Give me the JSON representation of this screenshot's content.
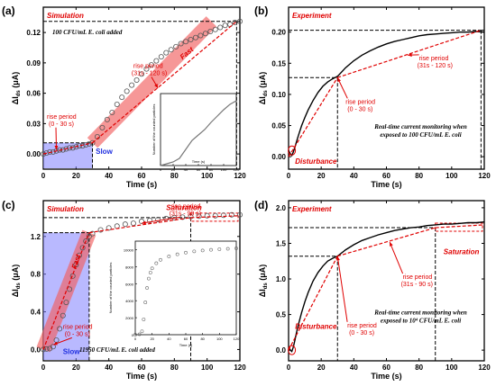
{
  "chart_data": [
    {
      "panel": "(a)",
      "type": "scatter",
      "mode_label": "Simulation",
      "annotation": "100  CFU/mL E. coli added",
      "xlabel": "Time (s)",
      "ylabel": "ΔI",
      "ylabel_sub": "ds",
      "ylabel_unit": " (μA)",
      "xlim": [
        0,
        120
      ],
      "ylim": [
        -0.015,
        0.145
      ],
      "xticks": [
        0,
        20,
        40,
        60,
        80,
        100,
        120
      ],
      "yticks": [
        0.0,
        0.03,
        0.06,
        0.09,
        0.12
      ],
      "ytick_labels": [
        "0.00",
        "0.03",
        "0.06",
        "0.09",
        "0.12"
      ],
      "periods": [
        {
          "label": "rise period",
          "range": "(0 - 30 s)"
        },
        {
          "label": "rise period",
          "range": "(31s - 120 s)"
        }
      ],
      "fast_label": "Fast",
      "slow_label": "Slow",
      "ref_lines": {
        "x": [
          30,
          118
        ],
        "y": [
          0.011,
          0.131
        ]
      },
      "series": [
        {
          "marker": "circle",
          "x": [
            0,
            2,
            4,
            6,
            8,
            10,
            12,
            14,
            16,
            18,
            20,
            22,
            24,
            26,
            28,
            30,
            33,
            36,
            39,
            42,
            45,
            48,
            51,
            54,
            57,
            60,
            63,
            66,
            69,
            72,
            75,
            78,
            81,
            84,
            87,
            90,
            93,
            96,
            99,
            102,
            105,
            108,
            111,
            114,
            117,
            120
          ],
          "y": [
            0.0,
            0.001,
            0.002,
            0.002,
            0.003,
            0.004,
            0.004,
            0.005,
            0.006,
            0.006,
            0.007,
            0.008,
            0.008,
            0.009,
            0.01,
            0.011,
            0.017,
            0.026,
            0.034,
            0.041,
            0.049,
            0.056,
            0.062,
            0.068,
            0.073,
            0.079,
            0.084,
            0.088,
            0.092,
            0.096,
            0.1,
            0.103,
            0.106,
            0.109,
            0.111,
            0.113,
            0.115,
            0.117,
            0.119,
            0.121,
            0.123,
            0.125,
            0.127,
            0.128,
            0.13,
            0.131
          ]
        }
      ],
      "fit_lines": [
        {
          "x": [
            0,
            30
          ],
          "y": [
            0.0,
            0.011
          ]
        },
        {
          "x": [
            30,
            118
          ],
          "y": [
            0.011,
            0.131
          ]
        }
      ],
      "inset": {
        "ylabel": "Number of the counted particles",
        "xlabel": "Time (s)",
        "xticks": [
          0,
          20,
          40,
          60,
          80,
          100,
          120
        ],
        "x": [
          0,
          10,
          20,
          30,
          40,
          50,
          60,
          70,
          80,
          90,
          100,
          110,
          120
        ],
        "y": [
          0,
          2,
          4,
          8,
          18,
          28,
          34,
          40,
          48,
          55,
          62,
          68,
          72
        ]
      }
    },
    {
      "panel": "(b)",
      "type": "line",
      "mode_label": "Experiment",
      "annotation_lines": [
        "Real-time current monitoring when",
        "exposed to 100 CFU/mL E. coli"
      ],
      "disturbance_label": "Disturbance",
      "xlabel": "Time (s)",
      "ylabel": "ΔI",
      "ylabel_sub": "ds",
      "ylabel_unit": " (μA)",
      "xlim": [
        0,
        120
      ],
      "ylim": [
        -0.02,
        0.24
      ],
      "xticks": [
        0,
        20,
        40,
        60,
        80,
        100,
        120
      ],
      "yticks": [
        0.0,
        0.05,
        0.1,
        0.15,
        0.2
      ],
      "ytick_labels": [
        "0.00",
        "0.05",
        "0.10",
        "0.15",
        "0.20"
      ],
      "periods": [
        {
          "label": "rise period",
          "range": "(0 - 30 s)"
        },
        {
          "label": "rise period",
          "range": "(31s - 120 s)"
        }
      ],
      "ref_lines": {
        "x": [
          30,
          118
        ],
        "y": [
          0.127,
          0.203
        ]
      },
      "series": [
        {
          "x": [
            0,
            1,
            2,
            3,
            4,
            5,
            6,
            8,
            10,
            12,
            15,
            18,
            21,
            24,
            27,
            30,
            35,
            40,
            45,
            50,
            55,
            60,
            65,
            70,
            75,
            80,
            85,
            90,
            95,
            100,
            105,
            110,
            115,
            120
          ],
          "y": [
            0.01,
            0.005,
            0.002,
            0.008,
            0.016,
            0.025,
            0.034,
            0.05,
            0.063,
            0.075,
            0.09,
            0.103,
            0.113,
            0.12,
            0.125,
            0.129,
            0.143,
            0.154,
            0.163,
            0.17,
            0.176,
            0.181,
            0.185,
            0.188,
            0.191,
            0.194,
            0.196,
            0.197,
            0.198,
            0.199,
            0.2,
            0.2,
            0.201,
            0.2
          ]
        }
      ],
      "fit_lines": [
        {
          "x": [
            0,
            30
          ],
          "y": [
            0.0,
            0.127
          ]
        },
        {
          "x": [
            30,
            118
          ],
          "y": [
            0.127,
            0.203
          ]
        }
      ]
    },
    {
      "panel": "(c)",
      "type": "scatter",
      "mode_label": "Simulation",
      "saturation_label": "Saturation",
      "annotation": "11950  CFU/mL E. coli added",
      "xlabel": "Time (s)",
      "ylabel": "ΔI",
      "ylabel_sub": "ds",
      "ylabel_unit": " (μA)",
      "xlim": [
        0,
        120
      ],
      "ylim": [
        -0.12,
        1.58
      ],
      "xticks": [
        0,
        20,
        40,
        60,
        80,
        100,
        120
      ],
      "yticks": [
        0.0,
        0.4,
        0.8,
        1.2
      ],
      "ytick_labels": [
        "0.0",
        "0.4",
        "0.8",
        "1.2"
      ],
      "periods": [
        {
          "label": "rise period",
          "range": "(0 - 30 s)"
        },
        {
          "label": "rise period",
          "range": "(31s - 90 s)"
        }
      ],
      "fast_label": "Fast",
      "slow_label": "Slow",
      "ref_lines": {
        "x": [
          28,
          90
        ],
        "y": [
          1.24,
          1.4
        ]
      },
      "series": [
        {
          "marker": "circle",
          "x": [
            0,
            2,
            4,
            6,
            8,
            10,
            12,
            14,
            16,
            18,
            20,
            22,
            24,
            26,
            28,
            30,
            35,
            40,
            45,
            50,
            55,
            60,
            65,
            70,
            75,
            80,
            85,
            90,
            95,
            100,
            105,
            110,
            115,
            120
          ],
          "y": [
            0.0,
            0.005,
            0.01,
            0.03,
            0.1,
            0.22,
            0.36,
            0.5,
            0.64,
            0.78,
            0.9,
            1.0,
            1.08,
            1.15,
            1.2,
            1.23,
            1.27,
            1.29,
            1.31,
            1.33,
            1.34,
            1.36,
            1.37,
            1.38,
            1.39,
            1.4,
            1.405,
            1.41,
            1.415,
            1.42,
            1.42,
            1.425,
            1.43,
            1.43
          ]
        }
      ],
      "fit_lines": [
        {
          "x": [
            0,
            28
          ],
          "y": [
            0.0,
            1.24
          ]
        },
        {
          "x": [
            28,
            90
          ],
          "y": [
            1.24,
            1.4
          ]
        },
        {
          "x": [
            90,
            120
          ],
          "y": [
            1.4,
            1.42
          ]
        }
      ],
      "inset": {
        "ylabel": "Number of the counted particles",
        "xlabel": "Time (s)",
        "xticks": [
          0,
          20,
          40,
          60,
          80,
          100,
          120
        ],
        "yticks": [
          0,
          2000,
          4000,
          6000,
          8000,
          10000
        ],
        "x": [
          0,
          5,
          8,
          10,
          12,
          14,
          16,
          18,
          20,
          25,
          30,
          40,
          50,
          60,
          70,
          80,
          90,
          100,
          110,
          120
        ],
        "y": [
          0,
          50,
          400,
          1800,
          3800,
          5500,
          6600,
          7300,
          7800,
          8400,
          8800,
          9200,
          9450,
          9650,
          9800,
          9900,
          9980,
          10050,
          10100,
          10150
        ]
      }
    },
    {
      "panel": "(d)",
      "type": "line",
      "mode_label": "Experiment",
      "saturation_label": "Saturation",
      "annotation_lines": [
        "Real-time current monitoring when",
        "exposed to 10⁴ CFU/mL E. coli"
      ],
      "disturbance_label": "Disturbance",
      "xlabel": "Time (s)",
      "ylabel": "ΔI",
      "ylabel_sub": "ds",
      "ylabel_unit": " (μA)",
      "xlim": [
        0,
        120
      ],
      "ylim": [
        -0.15,
        2.1
      ],
      "xticks": [
        0,
        20,
        40,
        60,
        80,
        100,
        120
      ],
      "yticks": [
        0.0,
        0.5,
        1.0,
        1.5,
        2.0
      ],
      "ytick_labels": [
        "0.0",
        "0.5",
        "1.0",
        "1.5",
        "2.0"
      ],
      "periods": [
        {
          "label": "rise period",
          "range": "(0 - 30 s)"
        },
        {
          "label": "rise period",
          "range": "(31s - 90 s)"
        }
      ],
      "ref_lines": {
        "x": [
          30,
          90
        ],
        "y": [
          1.32,
          1.72
        ]
      },
      "series": [
        {
          "x": [
            0,
            1,
            2,
            3,
            4,
            5,
            6,
            8,
            10,
            12,
            15,
            18,
            21,
            24,
            27,
            30,
            35,
            40,
            45,
            50,
            55,
            60,
            65,
            70,
            75,
            80,
            85,
            90,
            95,
            100,
            105,
            110,
            115,
            120
          ],
          "y": [
            0.05,
            0.0,
            -0.02,
            0.05,
            0.15,
            0.26,
            0.36,
            0.53,
            0.68,
            0.81,
            0.97,
            1.09,
            1.18,
            1.25,
            1.29,
            1.32,
            1.41,
            1.48,
            1.54,
            1.58,
            1.62,
            1.65,
            1.68,
            1.7,
            1.72,
            1.73,
            1.75,
            1.76,
            1.77,
            1.77,
            1.78,
            1.79,
            1.79,
            1.8
          ]
        }
      ],
      "fit_lines": [
        {
          "x": [
            0,
            30
          ],
          "y": [
            0.0,
            1.32
          ]
        },
        {
          "x": [
            30,
            90
          ],
          "y": [
            1.32,
            1.72
          ]
        },
        {
          "x": [
            90,
            120
          ],
          "y": [
            1.72,
            1.76
          ]
        }
      ]
    }
  ]
}
